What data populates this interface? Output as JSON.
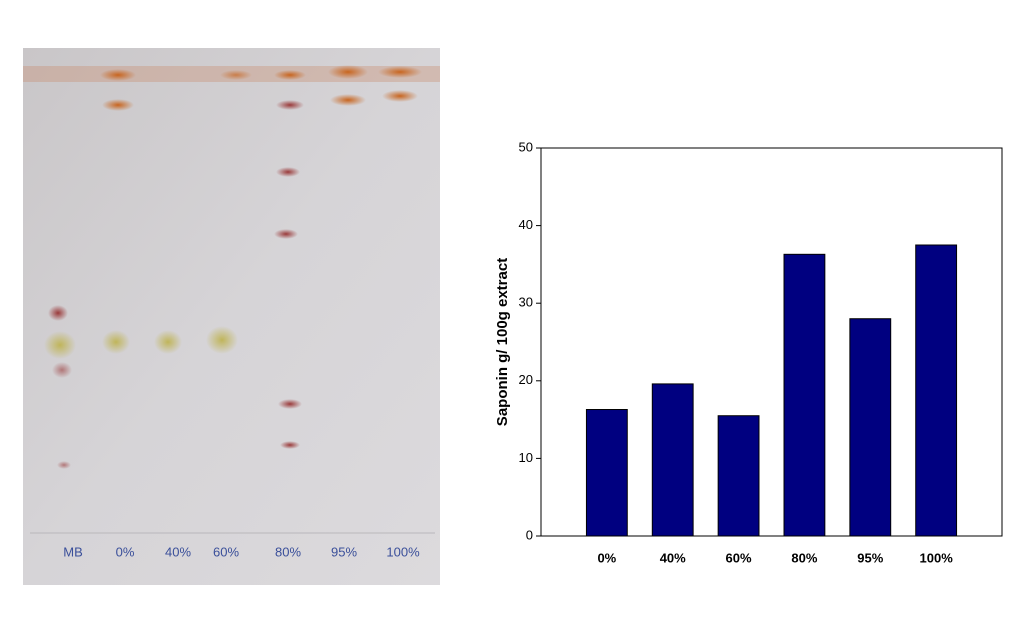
{
  "chart_data": {
    "type": "bar",
    "y_label": "Saponin g/ 100g extract",
    "categories": [
      "0%",
      "40%",
      "60%",
      "80%",
      "95%",
      "100%"
    ],
    "values": [
      16.3,
      19.6,
      15.5,
      36.3,
      28,
      37.5
    ],
    "color": "#000080",
    "ylim": [
      0,
      50
    ],
    "yticks": [
      0,
      10,
      20,
      30,
      40,
      50
    ],
    "grid": false
  },
  "photo": {
    "lane_labels": [
      "MB",
      "0%",
      "40%",
      "60%",
      "80%",
      "95%",
      "100%"
    ]
  }
}
